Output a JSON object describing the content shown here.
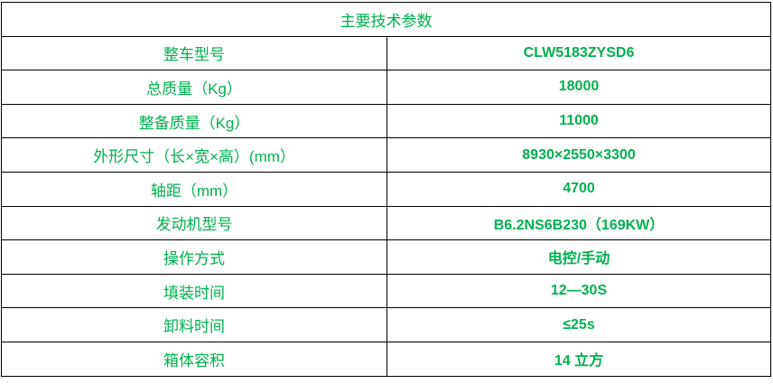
{
  "title": "主要技术参数",
  "accent_color": "#00b050",
  "rows": [
    {
      "label": "整车型号",
      "value": "CLW5183ZYSD6"
    },
    {
      "label": "总质量（Kg）",
      "value": "18000"
    },
    {
      "label": "整备质量（Kg）",
      "value": "11000"
    },
    {
      "label": "外形尺寸（长×宽×高）(mm）",
      "value": "8930×2550×3300"
    },
    {
      "label": "轴距（mm）",
      "value": "4700"
    },
    {
      "label": "发动机型号",
      "value": "B6.2NS6B230（169KW）"
    },
    {
      "label": "操作方式",
      "value": "电控/手动"
    },
    {
      "label": "填装时间",
      "value": "12—30S"
    },
    {
      "label": "卸料时间",
      "value": "≤25s"
    },
    {
      "label": "箱体容积",
      "value": "14 立方"
    }
  ]
}
